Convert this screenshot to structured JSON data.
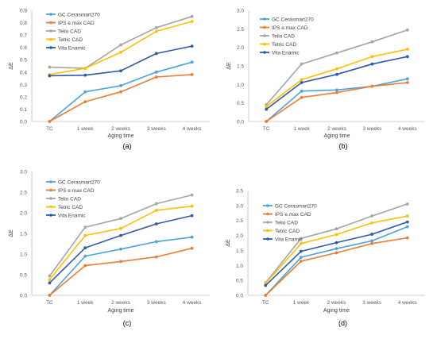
{
  "series_colors": [
    "#4aa3df",
    "#ed7d31",
    "#a5a5a5",
    "#ffc000",
    "#2e5aa8"
  ],
  "chart_data": [
    {
      "type": "line",
      "panel_label": "(a)",
      "xlabel": "Aging time",
      "ylabel": "ΔE",
      "categories": [
        "TC",
        "1 week",
        "2 weeks",
        "3 weeks",
        "4 weeks"
      ],
      "ylim": [
        0,
        0.9
      ],
      "yticks": [
        "0.0",
        "0.1",
        "0.2",
        "0.3",
        "0.4",
        "0.5",
        "0.6",
        "0.7",
        "0.8",
        "0.9"
      ],
      "grid": false,
      "legend": "top-left",
      "series": [
        {
          "name": "GC Cerasmart270",
          "values": [
            0.0,
            0.24,
            0.29,
            0.4,
            0.48
          ]
        },
        {
          "name": "IPS e.max CAD",
          "values": [
            0.0,
            0.16,
            0.24,
            0.36,
            0.38
          ]
        },
        {
          "name": "Telio CAD",
          "values": [
            0.44,
            0.43,
            0.62,
            0.76,
            0.85
          ]
        },
        {
          "name": "Tetric CAD",
          "values": [
            0.38,
            0.43,
            0.56,
            0.73,
            0.81
          ]
        },
        {
          "name": "Vita Enamic",
          "values": [
            0.37,
            0.375,
            0.41,
            0.55,
            0.61
          ]
        }
      ]
    },
    {
      "type": "line",
      "panel_label": "(b)",
      "xlabel": "Aging time",
      "ylabel": "ΔE",
      "categories": [
        "TC",
        "1 week",
        "2 weeks",
        "3 weeks",
        "4 weeks"
      ],
      "ylim": [
        0,
        3.0
      ],
      "yticks": [
        "0.0",
        "0.5",
        "1.0",
        "1.5",
        "2.0",
        "2.5",
        "3.0"
      ],
      "grid": false,
      "legend": "top-left",
      "series": [
        {
          "name": "GC Cerasmart270",
          "values": [
            0.0,
            0.82,
            0.85,
            0.95,
            1.15
          ]
        },
        {
          "name": "IPS e.max CAD",
          "values": [
            0.0,
            0.65,
            0.78,
            0.95,
            1.05
          ]
        },
        {
          "name": "Telio CAD",
          "values": [
            0.45,
            1.55,
            1.85,
            2.15,
            2.47
          ]
        },
        {
          "name": "Tetric CAD",
          "values": [
            0.4,
            1.13,
            1.42,
            1.75,
            1.95
          ]
        },
        {
          "name": "Vita Enamic",
          "values": [
            0.33,
            1.05,
            1.27,
            1.55,
            1.75
          ]
        }
      ]
    },
    {
      "type": "line",
      "panel_label": "(c)",
      "xlabel": "Aging time",
      "ylabel": "ΔE",
      "categories": [
        "TC",
        "1 week",
        "2 weeks",
        "3 weeks",
        "4 weeks"
      ],
      "ylim": [
        0,
        3.0
      ],
      "yticks": [
        "0.0",
        "0.5",
        "1.0",
        "1.5",
        "2.0",
        "2.5",
        "3.0"
      ],
      "grid": false,
      "legend": "top-left",
      "series": [
        {
          "name": "GC Cerasmart270",
          "values": [
            0.0,
            0.95,
            1.12,
            1.3,
            1.41
          ]
        },
        {
          "name": "IPS e.max CAD",
          "values": [
            0.0,
            0.72,
            0.82,
            0.93,
            1.14
          ]
        },
        {
          "name": "Telio CAD",
          "values": [
            0.47,
            1.65,
            1.86,
            2.22,
            2.43
          ]
        },
        {
          "name": "Tetric CAD",
          "values": [
            0.38,
            1.45,
            1.62,
            2.06,
            2.16
          ]
        },
        {
          "name": "Vita Enamic",
          "values": [
            0.3,
            1.15,
            1.45,
            1.73,
            1.93
          ]
        }
      ]
    },
    {
      "type": "line",
      "panel_label": "(d)",
      "xlabel": "Aging time",
      "ylabel": "ΔE",
      "categories": [
        "TC",
        "1 week",
        "2 weeks",
        "3 weeks",
        "4 weeks"
      ],
      "ylim": [
        0,
        3.5
      ],
      "yticks": [
        "0.0",
        "0.5",
        "1.0",
        "1.5",
        "2.0",
        "2.5",
        "3.0",
        "3.5"
      ],
      "grid": false,
      "legend": "top-left",
      "series": [
        {
          "name": "GC Cerasmart270",
          "values": [
            0.0,
            1.27,
            1.56,
            1.82,
            2.29
          ]
        },
        {
          "name": "IPS e.max CAD",
          "values": [
            0.0,
            1.14,
            1.42,
            1.73,
            1.92
          ]
        },
        {
          "name": "Telio CAD",
          "values": [
            0.42,
            1.9,
            2.22,
            2.65,
            3.05
          ]
        },
        {
          "name": "Tetric CAD",
          "values": [
            0.4,
            1.73,
            2.03,
            2.42,
            2.65
          ]
        },
        {
          "name": "Vita Enamic",
          "values": [
            0.33,
            1.47,
            1.76,
            2.04,
            2.45
          ]
        }
      ]
    }
  ]
}
